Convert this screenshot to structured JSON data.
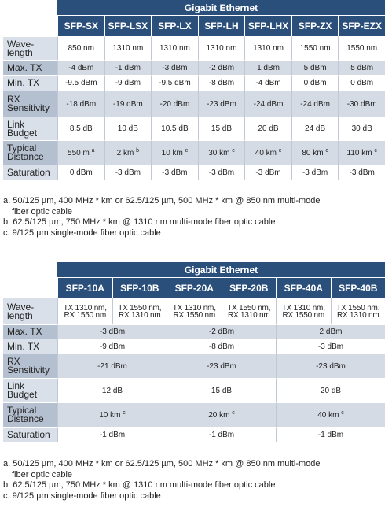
{
  "table1": {
    "group_header": "Gigabit Ethernet",
    "columns": [
      "SFP-SX",
      "SFP-LSX",
      "SFP-LX",
      "SFP-LH",
      "SFP-LHX",
      "SFP-ZX",
      "SFP-EZX"
    ],
    "rows": [
      {
        "label": [
          "Wave-",
          "length"
        ],
        "cells": [
          [
            "850 nm",
            ""
          ],
          [
            "1310 nm",
            ""
          ],
          [
            "1310 nm",
            ""
          ],
          [
            "1310 nm",
            ""
          ],
          [
            "1310 nm",
            ""
          ],
          [
            "1550 nm",
            ""
          ],
          [
            "1550 nm",
            ""
          ]
        ]
      },
      {
        "label": [
          "Max. TX"
        ],
        "cells": [
          [
            "-4 dBm",
            ""
          ],
          [
            "-1 dBm",
            ""
          ],
          [
            "-3 dBm",
            ""
          ],
          [
            "-2 dBm",
            ""
          ],
          [
            "1 dBm",
            ""
          ],
          [
            "5 dBm",
            ""
          ],
          [
            "5 dBm",
            ""
          ]
        ]
      },
      {
        "label": [
          "Min. TX"
        ],
        "cells": [
          [
            "-9.5 dBm",
            ""
          ],
          [
            "-9 dBm",
            ""
          ],
          [
            "-9.5 dBm",
            ""
          ],
          [
            "-8 dBm",
            ""
          ],
          [
            "-4 dBm",
            ""
          ],
          [
            "0 dBm",
            ""
          ],
          [
            "0 dBm",
            ""
          ]
        ]
      },
      {
        "label": [
          "RX",
          "Sensitivity"
        ],
        "cells": [
          [
            "-18 dBm",
            ""
          ],
          [
            "-19 dBm",
            ""
          ],
          [
            "-20 dBm",
            ""
          ],
          [
            "-23 dBm",
            ""
          ],
          [
            "-24 dBm",
            ""
          ],
          [
            "-24 dBm",
            ""
          ],
          [
            "-30 dBm",
            ""
          ]
        ]
      },
      {
        "label": [
          "Link",
          "Budget"
        ],
        "cells": [
          [
            "8.5 dB",
            ""
          ],
          [
            "10 dB",
            ""
          ],
          [
            "10.5 dB",
            ""
          ],
          [
            "15 dB",
            ""
          ],
          [
            "20 dB",
            ""
          ],
          [
            "24 dB",
            ""
          ],
          [
            "30 dB",
            ""
          ]
        ]
      },
      {
        "label": [
          "Typical",
          "Distance"
        ],
        "cells": [
          [
            "550 m",
            "a"
          ],
          [
            "2 km",
            "b"
          ],
          [
            "10 km",
            "c"
          ],
          [
            "30 km",
            "c"
          ],
          [
            "40 km",
            "c"
          ],
          [
            "80 km",
            "c"
          ],
          [
            "110 km",
            "c"
          ]
        ]
      },
      {
        "label": [
          "Saturation"
        ],
        "cells": [
          [
            "0 dBm",
            ""
          ],
          [
            "-3 dBm",
            ""
          ],
          [
            "-3 dBm",
            ""
          ],
          [
            "-3 dBm",
            ""
          ],
          [
            "-3 dBm",
            ""
          ],
          [
            "-3 dBm",
            ""
          ],
          [
            "-3 dBm",
            ""
          ]
        ]
      }
    ],
    "notes": [
      [
        "a. 50/125 µm, 400 MHz * km or 62.5/125 µm, 500 MHz * km @ 850 nm multi-mode",
        "fiber optic cable"
      ],
      [
        "b. 62.5/125 µm, 750 MHz * km @ 1310 nm multi-mode fiber optic cable"
      ],
      [
        "c. 9/125 µm single-mode fiber optic cable"
      ]
    ]
  },
  "table2": {
    "group_header": "Gigabit Ethernet",
    "columns": [
      "SFP-10A",
      "SFP-10B",
      "SFP-20A",
      "SFP-20B",
      "SFP-40A",
      "SFP-40B"
    ],
    "wavelength": [
      [
        "TX 1310 nm,",
        "RX 1550 nm"
      ],
      [
        "TX 1550 nm,",
        "RX 1310 nm"
      ],
      [
        "TX 1310 nm,",
        "RX 1550 nm"
      ],
      [
        "TX 1550 nm,",
        "RX 1310 nm"
      ],
      [
        "TX 1310 nm,",
        "RX 1550 nm"
      ],
      [
        "TX 1550 nm,",
        "RX 1310 nm"
      ]
    ],
    "rows": [
      {
        "label": [
          "Max. TX"
        ],
        "cells": [
          [
            "-3 dBm",
            ""
          ],
          [
            "-2 dBm",
            ""
          ],
          [
            "2 dBm",
            ""
          ]
        ]
      },
      {
        "label": [
          "Min. TX"
        ],
        "cells": [
          [
            "-9 dBm",
            ""
          ],
          [
            "-8 dBm",
            ""
          ],
          [
            "-3 dBm",
            ""
          ]
        ]
      },
      {
        "label": [
          "RX",
          "Sensitivity"
        ],
        "cells": [
          [
            "-21 dBm",
            ""
          ],
          [
            "-23 dBm",
            ""
          ],
          [
            "-23 dBm",
            ""
          ]
        ]
      },
      {
        "label": [
          "Link",
          "Budget"
        ],
        "cells": [
          [
            "12 dB",
            ""
          ],
          [
            "15 dB",
            ""
          ],
          [
            "20 dB",
            ""
          ]
        ]
      },
      {
        "label": [
          "Typical",
          "Distance"
        ],
        "cells": [
          [
            "10 km",
            "c"
          ],
          [
            "20 km",
            "c"
          ],
          [
            "40 km",
            "c"
          ]
        ]
      },
      {
        "label": [
          "Saturation"
        ],
        "cells": [
          [
            "-1 dBm",
            ""
          ],
          [
            "-1 dBm",
            ""
          ],
          [
            "-1 dBm",
            ""
          ]
        ]
      }
    ],
    "wavelength_label": [
      "Wave-",
      "length"
    ],
    "notes": [
      [
        "a. 50/125 µm, 400 MHz * km or 62.5/125 µm, 500 MHz * km @ 850 nm multi-mode",
        "fiber optic cable"
      ],
      [
        "b. 62.5/125 µm, 750 MHz * km @ 1310 nm multi-mode fiber optic cable"
      ],
      [
        "c. 9/125 µm single-mode fiber optic cable"
      ]
    ]
  }
}
